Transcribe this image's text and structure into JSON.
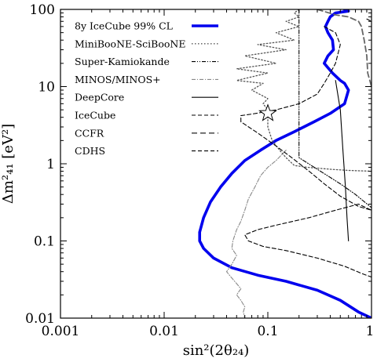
{
  "chart_data": {
    "type": "line",
    "xlabel": "sin²(2θ₂₄)",
    "ylabel": "Δm²₄₁ [eV²]",
    "xscale": "log",
    "yscale": "log",
    "xlim": [
      0.001,
      1
    ],
    "ylim": [
      0.01,
      100
    ],
    "x_tick_labels": [
      "0.001",
      "0.01",
      "0.1",
      "1"
    ],
    "y_tick_labels": [
      "0.01",
      "0.1",
      "1",
      "10",
      "100"
    ],
    "legend_position": "top-left",
    "best_fit_marker": {
      "symbol": "star",
      "x": 0.1,
      "y": 4.5
    },
    "series": [
      {
        "name": "8y IceCube 99% CL",
        "color": "#0000ee",
        "style": "solid-thick",
        "points": [
          [
            0.55,
            100
          ],
          [
            0.6,
            95
          ],
          [
            0.45,
            90
          ],
          [
            0.4,
            80
          ],
          [
            0.38,
            70
          ],
          [
            0.36,
            60
          ],
          [
            0.38,
            50
          ],
          [
            0.42,
            40
          ],
          [
            0.43,
            30
          ],
          [
            0.38,
            25
          ],
          [
            0.35,
            20
          ],
          [
            0.42,
            15
          ],
          [
            0.5,
            12
          ],
          [
            0.55,
            11
          ],
          [
            0.6,
            9
          ],
          [
            0.55,
            6
          ],
          [
            0.4,
            4.5
          ],
          [
            0.28,
            3.5
          ],
          [
            0.18,
            2.6
          ],
          [
            0.12,
            2
          ],
          [
            0.085,
            1.5
          ],
          [
            0.06,
            1.1
          ],
          [
            0.045,
            0.75
          ],
          [
            0.035,
            0.5
          ],
          [
            0.028,
            0.32
          ],
          [
            0.024,
            0.2
          ],
          [
            0.022,
            0.13
          ],
          [
            0.022,
            0.1
          ],
          [
            0.024,
            0.08
          ],
          [
            0.03,
            0.06
          ],
          [
            0.045,
            0.045
          ],
          [
            0.08,
            0.036
          ],
          [
            0.15,
            0.03
          ],
          [
            0.3,
            0.023
          ],
          [
            0.5,
            0.017
          ],
          [
            0.75,
            0.012
          ],
          [
            1.0,
            0.01
          ]
        ]
      },
      {
        "name": "MiniBooNE-SciBooNE",
        "color": "#555555",
        "style": "dotted",
        "points": [
          [
            0.2,
            100
          ],
          [
            0.18,
            90
          ],
          [
            0.2,
            80
          ],
          [
            0.15,
            70
          ],
          [
            0.2,
            60
          ],
          [
            0.12,
            50
          ],
          [
            0.18,
            40
          ],
          [
            0.08,
            35
          ],
          [
            0.15,
            30
          ],
          [
            0.06,
            25
          ],
          [
            0.12,
            20
          ],
          [
            0.05,
            17
          ],
          [
            0.1,
            15
          ],
          [
            0.05,
            12
          ],
          [
            0.09,
            11
          ],
          [
            0.07,
            9
          ],
          [
            0.1,
            7
          ],
          [
            0.09,
            6
          ],
          [
            0.1,
            5
          ],
          [
            0.1,
            3
          ],
          [
            0.11,
            2
          ],
          [
            0.13,
            1.5
          ],
          [
            0.15,
            1.2
          ],
          [
            0.18,
            0.95
          ],
          [
            0.24,
            0.9
          ],
          [
            0.4,
            0.85
          ],
          [
            0.6,
            0.82
          ],
          [
            1.0,
            0.8
          ]
        ]
      },
      {
        "name": "Super-Kamiokande",
        "color": "#000000",
        "style": "dash-dot-dot",
        "points": [
          [
            0.2,
            100
          ],
          [
            0.2,
            1.2
          ],
          [
            0.3,
            0.85
          ],
          [
            0.5,
            0.55
          ],
          [
            0.7,
            0.4
          ],
          [
            1.0,
            0.27
          ]
        ]
      },
      {
        "name": "MINOS/MINOS+",
        "color": "#888888",
        "style": "dash-dot",
        "points": [
          [
            0.15,
            1.5
          ],
          [
            0.12,
            1.1
          ],
          [
            0.1,
            0.9
          ],
          [
            0.085,
            0.7
          ],
          [
            0.075,
            0.5
          ],
          [
            0.065,
            0.35
          ],
          [
            0.06,
            0.25
          ],
          [
            0.055,
            0.18
          ],
          [
            0.05,
            0.14
          ],
          [
            0.046,
            0.1
          ],
          [
            0.045,
            0.08
          ],
          [
            0.05,
            0.065
          ],
          [
            0.045,
            0.05
          ],
          [
            0.04,
            0.04
          ],
          [
            0.045,
            0.033
          ],
          [
            0.05,
            0.028
          ],
          [
            0.055,
            0.024
          ],
          [
            0.05,
            0.02
          ],
          [
            0.055,
            0.017
          ],
          [
            0.06,
            0.014
          ],
          [
            0.058,
            0.012
          ],
          [
            0.06,
            0.01
          ]
        ]
      },
      {
        "name": "DeepCore",
        "color": "#000000",
        "style": "solid-thin",
        "points": [
          [
            0.45,
            12
          ],
          [
            0.5,
            5
          ],
          [
            0.53,
            1.5
          ],
          [
            0.56,
            0.5
          ],
          [
            0.58,
            0.2
          ],
          [
            0.6,
            0.1
          ]
        ]
      },
      {
        "name": "IceCube",
        "color": "#000000",
        "style": "dashed",
        "points": [
          [
            0.35,
            60
          ],
          [
            0.45,
            50
          ],
          [
            0.5,
            35
          ],
          [
            0.45,
            20
          ],
          [
            0.4,
            15
          ],
          [
            0.35,
            11
          ],
          [
            0.3,
            8
          ],
          [
            0.2,
            6
          ],
          [
            0.12,
            5
          ],
          [
            0.07,
            4.4
          ],
          [
            0.055,
            4.2
          ],
          [
            0.055,
            3.5
          ],
          [
            0.08,
            2.5
          ],
          [
            0.12,
            1.7
          ],
          [
            0.17,
            1.2
          ],
          [
            0.25,
            0.8
          ],
          [
            0.35,
            0.55
          ],
          [
            0.5,
            0.38
          ],
          [
            0.75,
            0.28
          ],
          [
            1.0,
            0.25
          ],
          [
            0.75,
            0.3
          ],
          [
            0.45,
            0.25
          ],
          [
            0.25,
            0.2
          ],
          [
            0.12,
            0.16
          ],
          [
            0.08,
            0.14
          ],
          [
            0.06,
            0.12
          ],
          [
            0.065,
            0.1
          ],
          [
            0.09,
            0.085
          ],
          [
            0.15,
            0.075
          ],
          [
            0.3,
            0.06
          ],
          [
            0.55,
            0.047
          ],
          [
            0.8,
            0.038
          ],
          [
            1.0,
            0.034
          ]
        ]
      },
      {
        "name": "CCFR",
        "color": "#666666",
        "style": "dashed-long",
        "points": [
          [
            0.3,
            100
          ],
          [
            0.45,
            85
          ],
          [
            0.6,
            80
          ],
          [
            0.75,
            70
          ],
          [
            0.8,
            60
          ],
          [
            0.85,
            40
          ],
          [
            0.9,
            25
          ],
          [
            0.92,
            15
          ],
          [
            1.0,
            10
          ]
        ]
      },
      {
        "name": "CDHS",
        "color": "#000000",
        "style": "dashed",
        "points": [
          [
            0.9,
            75
          ],
          [
            1.0,
            70
          ]
        ]
      }
    ]
  }
}
